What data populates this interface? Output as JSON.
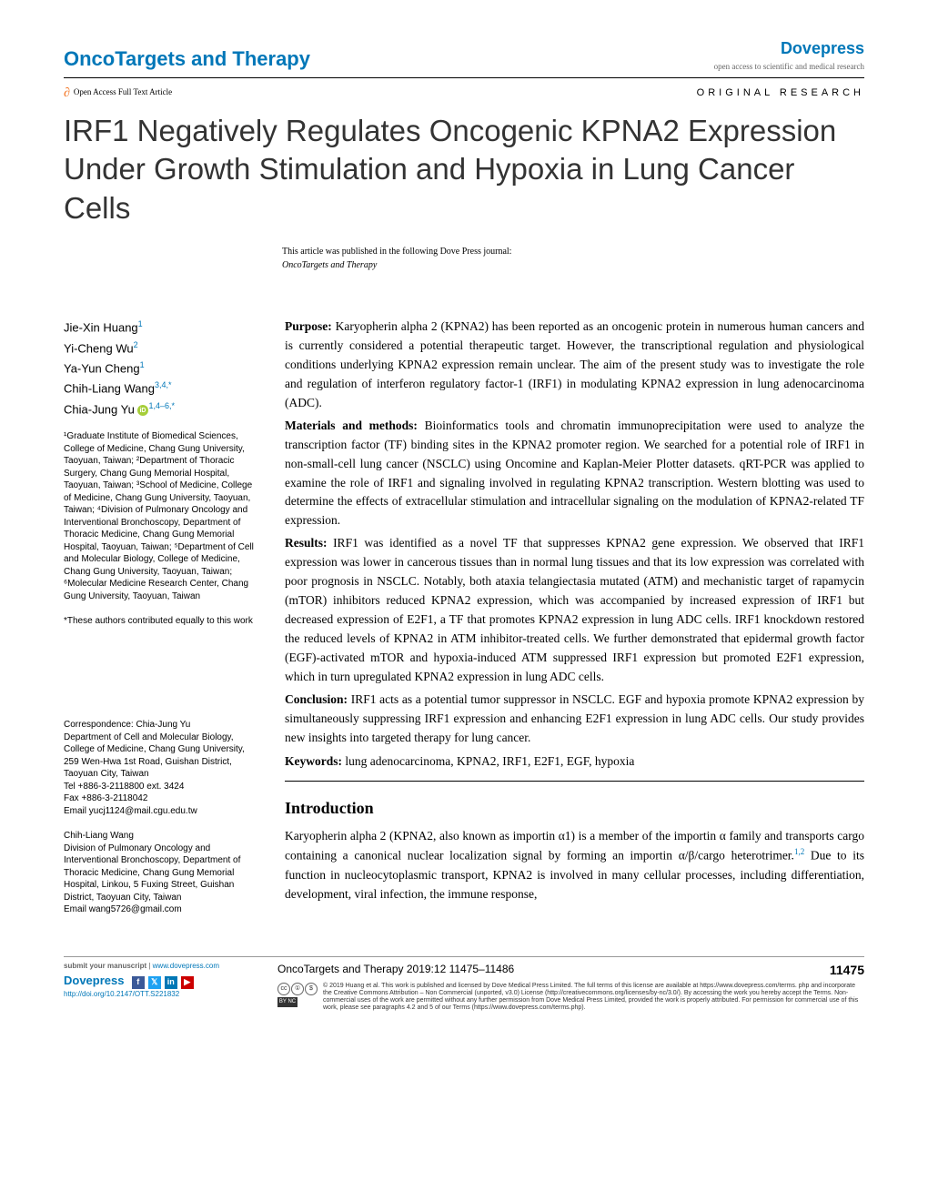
{
  "header": {
    "journal_name": "OncoTargets and Therapy",
    "publisher": "Dovepress",
    "publisher_tagline": "open access to scientific and medical research",
    "open_access_label": "Open Access Full Text Article",
    "article_type": "ORIGINAL RESEARCH"
  },
  "title": "IRF1 Negatively Regulates Oncogenic KPNA2 Expression Under Growth Stimulation and Hypoxia in Lung Cancer Cells",
  "pub_note": {
    "line1": "This article was published in the following Dove Press journal:",
    "line2": "OncoTargets and Therapy"
  },
  "authors": [
    {
      "name": "Jie-Xin Huang",
      "sup": "1"
    },
    {
      "name": "Yi-Cheng Wu",
      "sup": "2"
    },
    {
      "name": "Ya-Yun Cheng",
      "sup": "1"
    },
    {
      "name": "Chih-Liang Wang",
      "sup": "3,4,",
      "star": true
    },
    {
      "name": "Chia-Jung Yu",
      "sup": "1,4–6,",
      "orcid": true,
      "star": true
    }
  ],
  "affiliations": "¹Graduate Institute of Biomedical Sciences, College of Medicine, Chang Gung University, Taoyuan, Taiwan; ²Department of Thoracic Surgery, Chang Gung Memorial Hospital, Taoyuan, Taiwan; ³School of Medicine, College of Medicine, Chang Gung University, Taoyuan, Taiwan; ⁴Division of Pulmonary Oncology and Interventional Bronchoscopy, Department of Thoracic Medicine, Chang Gung Memorial Hospital, Taoyuan, Taiwan; ⁵Department of Cell and Molecular Biology, College of Medicine, Chang Gung University, Taoyuan, Taiwan; ⁶Molecular Medicine Research Center, Chang Gung University, Taoyuan, Taiwan",
  "equal_contrib": "*These authors contributed equally to this work",
  "correspondence": [
    {
      "name": "Correspondence: Chia-Jung Yu",
      "body": "Department of Cell and Molecular Biology, College of Medicine, Chang Gung University, 259 Wen-Hwa 1st Road, Guishan District, Taoyuan City, Taiwan\nTel +886-3-2118800 ext. 3424\nFax +886-3-2118042\nEmail yucj1124@mail.cgu.edu.tw"
    },
    {
      "name": "Chih-Liang Wang",
      "body": "Division of Pulmonary Oncology and Interventional Bronchoscopy, Department of Thoracic Medicine, Chang Gung Memorial Hospital, Linkou, 5 Fuxing Street, Guishan District, Taoyuan City, Taiwan\nEmail wang5726@gmail.com"
    }
  ],
  "abstract": {
    "purpose": {
      "label": "Purpose:",
      "text": " Karyopherin alpha 2 (KPNA2) has been reported as an oncogenic protein in numerous human cancers and is currently considered a potential therapeutic target. However, the transcriptional regulation and physiological conditions underlying KPNA2 expression remain unclear. The aim of the present study was to investigate the role and regulation of interferon regulatory factor-1 (IRF1) in modulating KPNA2 expression in lung adenocarcinoma (ADC)."
    },
    "methods": {
      "label": "Materials and methods:",
      "text": " Bioinformatics tools and chromatin immunoprecipitation were used to analyze the transcription factor (TF) binding sites in the KPNA2 promoter region. We searched for a potential role of IRF1 in non-small-cell lung cancer (NSCLC) using Oncomine and Kaplan-Meier Plotter datasets. qRT-PCR was applied to examine the role of IRF1 and signaling involved in regulating KPNA2 transcription. Western blotting was used to determine the effects of extracellular stimulation and intracellular signaling on the modulation of KPNA2-related TF expression."
    },
    "results": {
      "label": "Results:",
      "text": " IRF1 was identified as a novel TF that suppresses KPNA2 gene expression. We observed that IRF1 expression was lower in cancerous tissues than in normal lung tissues and that its low expression was correlated with poor prognosis in NSCLC. Notably, both ataxia telangiectasia mutated (ATM) and mechanistic target of rapamycin (mTOR) inhibitors reduced KPNA2 expression, which was accompanied by increased expression of IRF1 but decreased expression of E2F1, a TF that promotes KPNA2 expression in lung ADC cells. IRF1 knockdown restored the reduced levels of KPNA2 in ATM inhibitor-treated cells. We further demonstrated that epidermal growth factor (EGF)-activated mTOR and hypoxia-induced ATM suppressed IRF1 expression but promoted E2F1 expression, which in turn upregulated KPNA2 expression in lung ADC cells."
    },
    "conclusion": {
      "label": "Conclusion:",
      "text": " IRF1 acts as a potential tumor suppressor in NSCLC. EGF and hypoxia promote KPNA2 expression by simultaneously suppressing IRF1 expression and enhancing E2F1 expression in lung ADC cells. Our study provides new insights into targeted therapy for lung cancer."
    },
    "keywords": {
      "label": "Keywords:",
      "text": " lung adenocarcinoma, KPNA2, IRF1, E2F1, EGF, hypoxia"
    }
  },
  "intro": {
    "heading": "Introduction",
    "text_before_refs": "Karyopherin alpha 2 (KPNA2, also known as importin α1) is a member of the importin α family and transports cargo containing a canonical nuclear localization signal by forming an importin α/β/cargo heterotrimer.",
    "refs": "1,2",
    "text_after_refs": " Due to its function in nucleocytoplasmic transport, KPNA2 is involved in many cellular processes, including differentiation, development, viral infection, the immune response,"
  },
  "footer": {
    "submit_text": "submit your manuscript | www.dovepress.com",
    "dovepress": "Dovepress",
    "doi": "http://doi.org/10.2147/OTT.S221832",
    "journal_line": "OncoTargets and Therapy 2019:12 11475–11486",
    "page_num": "11475",
    "license": "© 2019 Huang et al. This work is published and licensed by Dove Medical Press Limited. The full terms of this license are available at https://www.dovepress.com/terms. php and incorporate the Creative Commons Attribution – Non Commercial (unported, v3.0) License (http://creativecommons.org/licenses/by-nc/3.0/). By accessing the work you hereby accept the Terms. Non-commercial uses of the work are permitted without any further permission from Dove Medical Press Limited, provided the work is properly attributed. For permission for commercial use of this work, please see paragraphs 4.2 and 5 of our Terms (https://www.dovepress.com/terms.php)."
  },
  "colors": {
    "brand_blue": "#0077b8",
    "orange": "#f47421",
    "orcid_green": "#a6ce39"
  }
}
